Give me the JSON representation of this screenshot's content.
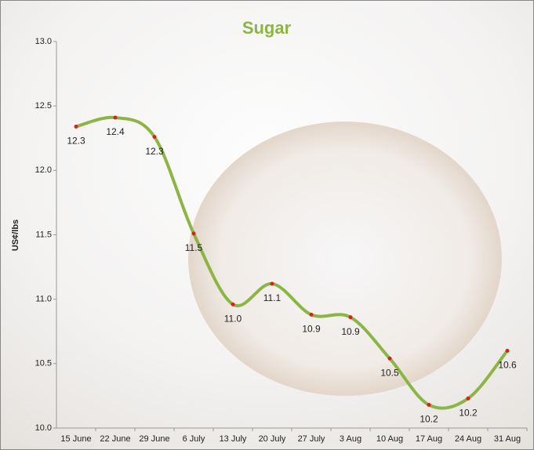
{
  "chart_data": {
    "type": "line",
    "title": "Sugar",
    "y_label": "US¢/lbs",
    "categories": [
      "15 June",
      "22 June",
      "29 June",
      "6 July",
      "13 July",
      "20 July",
      "27 July",
      "3 Aug",
      "10 Aug",
      "17 Aug",
      "24 Aug",
      "31 Aug"
    ],
    "series": [
      {
        "name": "Sugar",
        "color": "#8db545",
        "marker_color": "#d9221c",
        "values": [
          12.34,
          12.41,
          12.26,
          11.51,
          10.96,
          11.12,
          10.88,
          10.86,
          10.54,
          10.18,
          10.23,
          10.6
        ],
        "value_labels": [
          "12.3",
          "12.4",
          "12.3",
          "11.5",
          "11.0",
          "11.1",
          "10.9",
          "10.9",
          "10.5",
          "10.2",
          "10.2",
          "10.6"
        ]
      }
    ],
    "ylim": [
      10,
      13
    ],
    "yticks": [
      {
        "value": 10,
        "label": "10.0"
      },
      10.5,
      {
        "value": 11,
        "label": "11.0"
      },
      11.5,
      {
        "value": 12,
        "label": "12.0"
      },
      12.5,
      {
        "value": 13,
        "label": "13.0"
      }
    ],
    "smooth": true
  }
}
